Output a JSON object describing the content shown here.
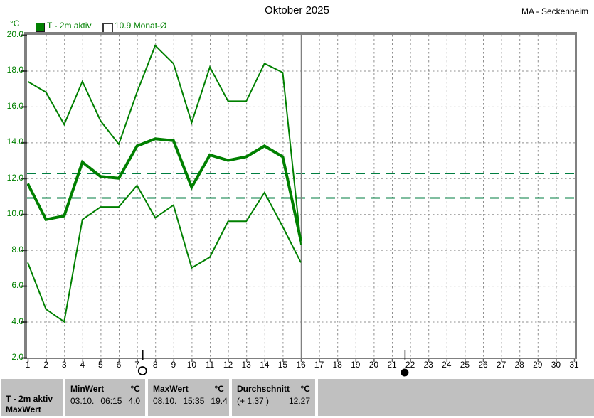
{
  "header": {
    "title": "Oktober 2025",
    "station": "MA - Seckenheim"
  },
  "legend": {
    "unit": "°C",
    "series_active": "T - 2m aktiv",
    "series_monthly_avg": "10.9 Monat-Ø"
  },
  "colors": {
    "line": "#008000",
    "ref": "#007e40",
    "grid": "#8f8f8f",
    "axis": "#808080",
    "tick": "#303030",
    "panel": "#c0c0c0"
  },
  "chart_data": {
    "type": "line",
    "title": "Oktober 2025",
    "ylabel": "°C",
    "xlim": [
      1,
      31
    ],
    "ylim": [
      2,
      20
    ],
    "grid": true,
    "xtick_labels": [
      "1",
      "2",
      "3",
      "4",
      "5",
      "6",
      "7",
      "8",
      "9",
      "10",
      "11",
      "12",
      "13",
      "14",
      "15",
      "16",
      "17",
      "18",
      "19",
      "20",
      "21",
      "22",
      "23",
      "24",
      "25",
      "26",
      "27",
      "28",
      "29",
      "30",
      "31"
    ],
    "ytick_values": [
      20,
      18,
      16,
      14,
      12,
      10,
      8,
      6,
      4,
      2
    ],
    "ytick_labels": [
      "20.0",
      "18.0",
      "16.0",
      "14.0",
      "12.0",
      "10.0",
      "8.0",
      "6.0",
      "4.0",
      "2.0"
    ],
    "x": [
      1,
      2,
      3,
      4,
      5,
      6,
      7,
      8,
      9,
      10,
      11,
      12,
      13,
      14,
      15,
      16
    ],
    "series": [
      {
        "name": "max",
        "values": [
          17.4,
          16.8,
          15.0,
          17.4,
          15.2,
          13.9,
          16.8,
          19.4,
          18.4,
          15.1,
          18.2,
          16.3,
          16.3,
          18.4,
          17.9,
          8.3
        ]
      },
      {
        "name": "mean",
        "values": [
          11.7,
          9.7,
          9.9,
          12.9,
          12.1,
          12.0,
          13.8,
          14.2,
          14.1,
          11.5,
          13.3,
          13.0,
          13.2,
          13.8,
          13.2,
          8.5
        ]
      },
      {
        "name": "min",
        "values": [
          7.3,
          4.7,
          4.0,
          9.7,
          10.4,
          10.4,
          11.6,
          9.8,
          10.5,
          7.0,
          7.6,
          9.6,
          9.6,
          11.2,
          9.3,
          7.3
        ]
      }
    ],
    "reference_lines": [
      {
        "name": "durchschnitt-aktuell",
        "value": 12.27
      },
      {
        "name": "monat-durchschnitt",
        "value": 10.9
      }
    ],
    "today_marker_day": 16,
    "moon_markers": [
      {
        "day": 7.3,
        "symbol": "open-circle"
      },
      {
        "day": 21.7,
        "symbol": "filled-circle"
      }
    ]
  },
  "table": {
    "row_label_line1": "T - 2m aktiv",
    "row_label_line2": "MaxWert",
    "min_col": {
      "header": "MinWert",
      "unit": "°C",
      "date": "03.10.",
      "time": "06:15",
      "value": "4.0"
    },
    "max_col": {
      "header": "MaxWert",
      "unit": "°C",
      "date": "08.10.",
      "time": "15:35",
      "value": "19.4"
    },
    "avg_col": {
      "header": "Durchschnitt",
      "unit": "°C",
      "delta": "(+ 1.37 )",
      "value": "12.27"
    }
  }
}
